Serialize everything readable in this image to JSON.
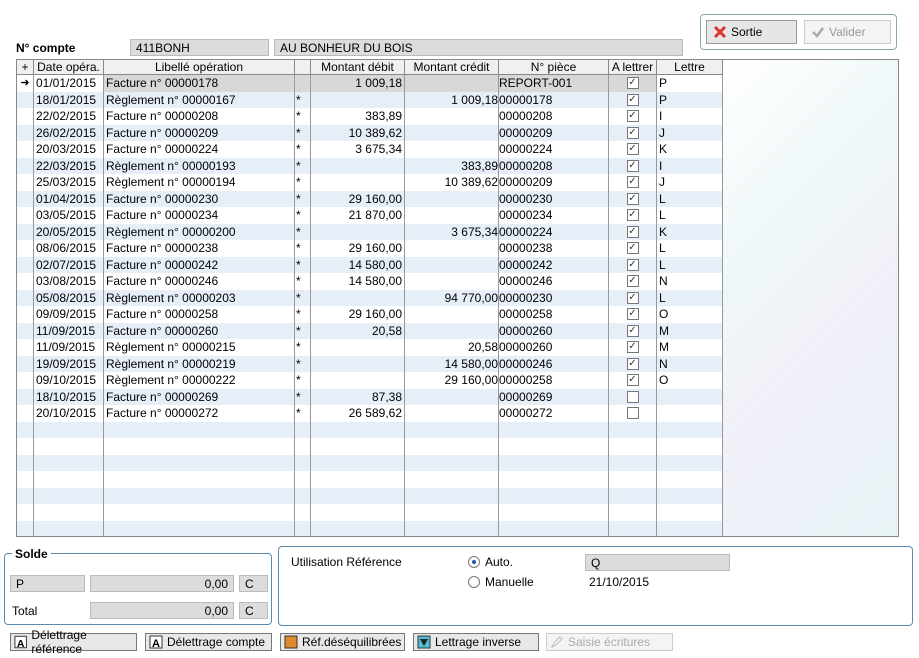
{
  "buttons": {
    "sortie": "Sortie",
    "valider": "Valider"
  },
  "compte": {
    "label": "N° compte",
    "code": "411BONH",
    "name": "AU BONHEUR DU BOIS"
  },
  "grid": {
    "headers": [
      "Date opéra.",
      "Libellé opération",
      "Montant débit",
      "Montant crédit",
      "N° pièce",
      "A lettrer",
      "Lettre"
    ],
    "rows": [
      {
        "date": "01/01/2015",
        "lib": "Facture n° 00000178",
        "star": "",
        "deb": "1 009,18",
        "cred": "",
        "piece": "REPORT-001",
        "chk": true,
        "let": "P"
      },
      {
        "date": "18/01/2015",
        "lib": "Règlement n° 00000167",
        "star": "*",
        "deb": "",
        "cred": "1 009,18",
        "piece": "00000178",
        "chk": true,
        "let": "P"
      },
      {
        "date": "22/02/2015",
        "lib": "Facture n° 00000208",
        "star": "*",
        "deb": "383,89",
        "cred": "",
        "piece": "00000208",
        "chk": true,
        "let": "I"
      },
      {
        "date": "26/02/2015",
        "lib": "Facture n° 00000209",
        "star": "*",
        "deb": "10 389,62",
        "cred": "",
        "piece": "00000209",
        "chk": true,
        "let": "J"
      },
      {
        "date": "20/03/2015",
        "lib": "Facture n° 00000224",
        "star": "*",
        "deb": "3 675,34",
        "cred": "",
        "piece": "00000224",
        "chk": true,
        "let": "K"
      },
      {
        "date": "22/03/2015",
        "lib": "Règlement n° 00000193",
        "star": "*",
        "deb": "",
        "cred": "383,89",
        "piece": "00000208",
        "chk": true,
        "let": "I"
      },
      {
        "date": "25/03/2015",
        "lib": "Règlement n° 00000194",
        "star": "*",
        "deb": "",
        "cred": "10 389,62",
        "piece": "00000209",
        "chk": true,
        "let": "J"
      },
      {
        "date": "01/04/2015",
        "lib": "Facture n° 00000230",
        "star": "*",
        "deb": "29 160,00",
        "cred": "",
        "piece": "00000230",
        "chk": true,
        "let": "L"
      },
      {
        "date": "03/05/2015",
        "lib": "Facture n° 00000234",
        "star": "*",
        "deb": "21 870,00",
        "cred": "",
        "piece": "00000234",
        "chk": true,
        "let": "L"
      },
      {
        "date": "20/05/2015",
        "lib": "Règlement n° 00000200",
        "star": "*",
        "deb": "",
        "cred": "3 675,34",
        "piece": "00000224",
        "chk": true,
        "let": "K"
      },
      {
        "date": "08/06/2015",
        "lib": "Facture n° 00000238",
        "star": "*",
        "deb": "29 160,00",
        "cred": "",
        "piece": "00000238",
        "chk": true,
        "let": "L"
      },
      {
        "date": "02/07/2015",
        "lib": "Facture n° 00000242",
        "star": "*",
        "deb": "14 580,00",
        "cred": "",
        "piece": "00000242",
        "chk": true,
        "let": "L"
      },
      {
        "date": "03/08/2015",
        "lib": "Facture n° 00000246",
        "star": "*",
        "deb": "14 580,00",
        "cred": "",
        "piece": "00000246",
        "chk": true,
        "let": "N"
      },
      {
        "date": "05/08/2015",
        "lib": "Règlement n° 00000203",
        "star": "*",
        "deb": "",
        "cred": "94 770,00",
        "piece": "00000230",
        "chk": true,
        "let": "L"
      },
      {
        "date": "09/09/2015",
        "lib": "Facture n° 00000258",
        "star": "*",
        "deb": "29 160,00",
        "cred": "",
        "piece": "00000258",
        "chk": true,
        "let": "O"
      },
      {
        "date": "11/09/2015",
        "lib": "Facture n° 00000260",
        "star": "*",
        "deb": "20,58",
        "cred": "",
        "piece": "00000260",
        "chk": true,
        "let": "M"
      },
      {
        "date": "11/09/2015",
        "lib": "Règlement n° 00000215",
        "star": "*",
        "deb": "",
        "cred": "20,58",
        "piece": "00000260",
        "chk": true,
        "let": "M"
      },
      {
        "date": "19/09/2015",
        "lib": "Règlement n° 00000219",
        "star": "*",
        "deb": "",
        "cred": "14 580,00",
        "piece": "00000246",
        "chk": true,
        "let": "N"
      },
      {
        "date": "09/10/2015",
        "lib": "Règlement n° 00000222",
        "star": "*",
        "deb": "",
        "cred": "29 160,00",
        "piece": "00000258",
        "chk": true,
        "let": "O"
      },
      {
        "date": "18/10/2015",
        "lib": "Facture n° 00000269",
        "star": "*",
        "deb": "87,38",
        "cred": "",
        "piece": "00000269",
        "chk": false,
        "let": ""
      },
      {
        "date": "20/10/2015",
        "lib": "Facture n° 00000272",
        "star": "*",
        "deb": "26 589,62",
        "cred": "",
        "piece": "00000272",
        "chk": false,
        "let": ""
      }
    ],
    "empty_rows": 7
  },
  "solde": {
    "title": "Solde",
    "code": "P",
    "value": "0,00",
    "sense": "C",
    "total_label": "Total",
    "total_value": "0,00",
    "total_sense": "C"
  },
  "reference": {
    "label": "Utilisation Référence",
    "auto_label": "Auto.",
    "auto_value": "Q",
    "manual_label": "Manuelle",
    "manual_value": "21/10/2015"
  },
  "bottom": [
    "Délettrage référence",
    "Délettrage compte",
    "Réf.déséquilibrées",
    "Lettrage inverse",
    "Saisie écritures"
  ]
}
